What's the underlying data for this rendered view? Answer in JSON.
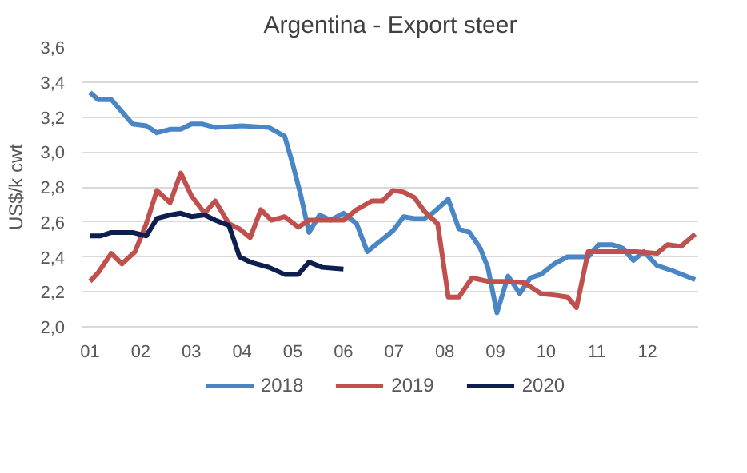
{
  "chart_data": {
    "type": "line",
    "title": "Argentina - Export steer",
    "ylabel": "US$/k cwt",
    "xlim": [
      0.85,
      13
    ],
    "ylim": [
      2.0,
      3.6
    ],
    "xticks": [
      {
        "value": 1,
        "label": "01"
      },
      {
        "value": 2,
        "label": "02"
      },
      {
        "value": 3,
        "label": "03"
      },
      {
        "value": 4,
        "label": "04"
      },
      {
        "value": 5,
        "label": "05"
      },
      {
        "value": 6,
        "label": "06"
      },
      {
        "value": 7,
        "label": "07"
      },
      {
        "value": 8,
        "label": "08"
      },
      {
        "value": 9,
        "label": "09"
      },
      {
        "value": 10,
        "label": "10"
      },
      {
        "value": 11,
        "label": "11"
      },
      {
        "value": 12,
        "label": "12"
      }
    ],
    "yticks": [
      {
        "value": 2.0,
        "label": "2,0"
      },
      {
        "value": 2.2,
        "label": "2,2"
      },
      {
        "value": 2.4,
        "label": "2,4"
      },
      {
        "value": 2.6,
        "label": "2,6"
      },
      {
        "value": 2.8,
        "label": "2,8"
      },
      {
        "value": 3.0,
        "label": "3,0"
      },
      {
        "value": 3.2,
        "label": "3,2"
      },
      {
        "value": 3.4,
        "label": "3,4"
      },
      {
        "value": 3.6,
        "label": "3,6"
      }
    ],
    "grid": "y",
    "legend": "bottom",
    "marker": "none",
    "line_style": "solid",
    "series": [
      {
        "name": "2018",
        "color": "#4a86c6",
        "x": [
          1.0,
          1.16,
          1.42,
          1.84,
          2.11,
          2.32,
          2.58,
          2.79,
          3.0,
          3.21,
          3.47,
          4.0,
          4.53,
          4.84,
          5.0,
          5.16,
          5.32,
          5.53,
          5.74,
          6.0,
          6.26,
          6.47,
          6.77,
          6.98,
          7.19,
          7.4,
          7.6,
          7.76,
          8.07,
          8.28,
          8.49,
          8.7,
          8.85,
          9.03,
          9.25,
          9.48,
          9.69,
          9.9,
          10.16,
          10.42,
          10.63,
          10.83,
          11.04,
          11.3,
          11.51,
          11.72,
          11.93,
          12.19,
          12.5,
          12.94
        ],
        "values": [
          3.34,
          3.3,
          3.3,
          3.16,
          3.15,
          3.11,
          3.13,
          3.13,
          3.16,
          3.16,
          3.14,
          3.15,
          3.14,
          3.09,
          2.93,
          2.75,
          2.54,
          2.64,
          2.61,
          2.65,
          2.59,
          2.43,
          2.5,
          2.55,
          2.63,
          2.62,
          2.62,
          2.65,
          2.73,
          2.56,
          2.54,
          2.45,
          2.34,
          2.08,
          2.29,
          2.19,
          2.28,
          2.3,
          2.36,
          2.4,
          2.4,
          2.4,
          2.47,
          2.47,
          2.45,
          2.38,
          2.43,
          2.35,
          2.32,
          2.27
        ]
      },
      {
        "name": "2019",
        "color": "#c0504d",
        "x": [
          1.0,
          1.16,
          1.42,
          1.63,
          1.89,
          2.11,
          2.32,
          2.58,
          2.79,
          3.0,
          3.26,
          3.47,
          3.74,
          3.95,
          4.16,
          4.37,
          4.58,
          4.84,
          5.11,
          5.32,
          5.58,
          6.0,
          6.26,
          6.56,
          6.77,
          6.98,
          7.19,
          7.4,
          7.6,
          7.86,
          8.07,
          8.28,
          8.54,
          8.85,
          9.27,
          9.58,
          9.9,
          10.21,
          10.42,
          10.6,
          10.83,
          11.15,
          11.46,
          11.77,
          12.19,
          12.4,
          12.66,
          12.94
        ],
        "values": [
          2.26,
          2.31,
          2.42,
          2.36,
          2.43,
          2.59,
          2.78,
          2.71,
          2.88,
          2.75,
          2.65,
          2.72,
          2.59,
          2.56,
          2.51,
          2.67,
          2.61,
          2.63,
          2.57,
          2.61,
          2.61,
          2.61,
          2.67,
          2.72,
          2.72,
          2.78,
          2.77,
          2.74,
          2.66,
          2.59,
          2.17,
          2.17,
          2.28,
          2.26,
          2.26,
          2.25,
          2.19,
          2.18,
          2.17,
          2.11,
          2.43,
          2.43,
          2.43,
          2.43,
          2.42,
          2.47,
          2.46,
          2.53
        ]
      },
      {
        "name": "2020",
        "color": "#0d1f4f",
        "x": [
          1.0,
          1.21,
          1.42,
          1.84,
          2.11,
          2.32,
          2.58,
          2.79,
          3.0,
          3.26,
          3.47,
          3.74,
          3.95,
          4.16,
          4.53,
          4.84,
          5.11,
          5.32,
          5.58,
          6.0
        ],
        "values": [
          2.52,
          2.52,
          2.54,
          2.54,
          2.52,
          2.62,
          2.64,
          2.65,
          2.63,
          2.64,
          2.61,
          2.58,
          2.4,
          2.37,
          2.34,
          2.3,
          2.3,
          2.37,
          2.34,
          2.33
        ]
      }
    ]
  }
}
